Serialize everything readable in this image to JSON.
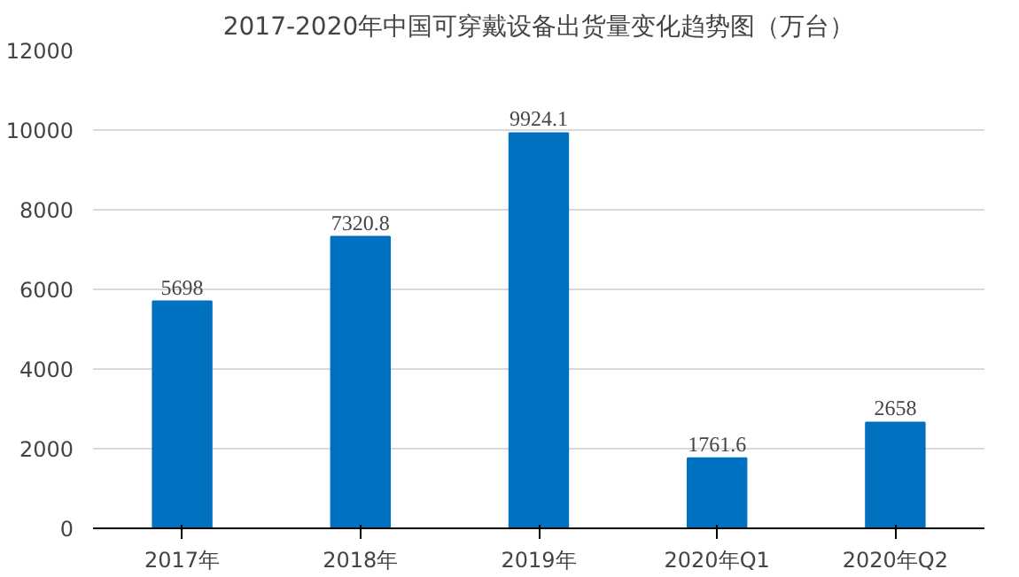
{
  "chart_data": {
    "type": "bar",
    "title": "2017-2020年中国可穿戴设备出货量变化趋势图（万台）",
    "categories": [
      "2017年",
      "2018年",
      "2019年",
      "2020年Q1",
      "2020年Q2"
    ],
    "values": [
      5698,
      7320.8,
      9924.1,
      1761.6,
      2658
    ],
    "color": "#0070c0",
    "ylim": [
      0,
      12000
    ],
    "yticks": [
      0,
      2000,
      4000,
      6000,
      8000,
      10000,
      12000
    ],
    "grid": "y",
    "data_labels": true
  }
}
